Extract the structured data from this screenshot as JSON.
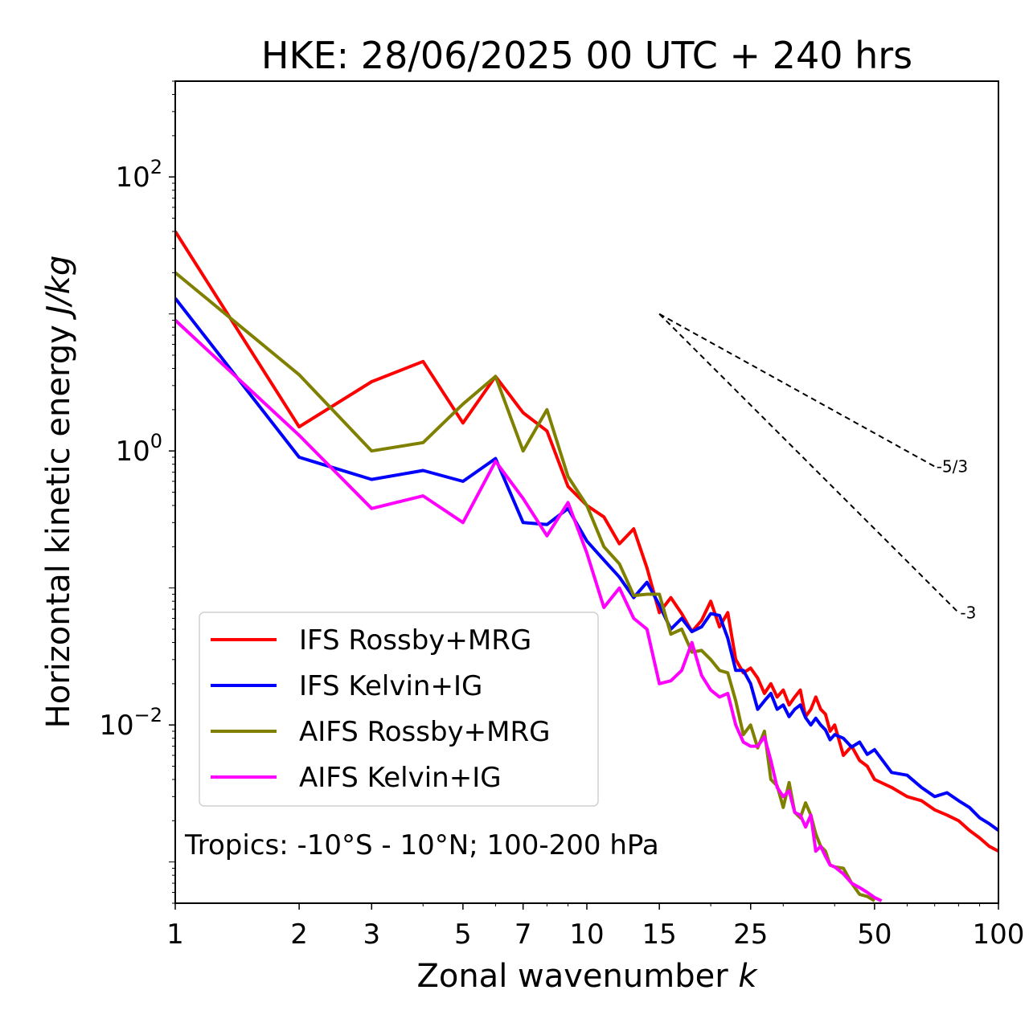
{
  "chart_data": {
    "type": "line",
    "title": "HKE: 28/06/2025 00 UTC + 240 hrs",
    "xlabel_text": "Zonal wavenumber ",
    "xlabel_var": "k",
    "ylabel_text": "Horizontal kinetic energy ",
    "ylabel_units": "J/kg",
    "annotation": "Tropics: -10°S - 10°N; 100-200 hPa",
    "x_scale": "log",
    "y_scale": "log",
    "xlim": [
      1,
      100
    ],
    "ylim": [
      0.0005,
      500
    ],
    "grid": false,
    "legend_position": "lower-left",
    "xticks": [
      {
        "value": 1,
        "label": "1"
      },
      {
        "value": 2,
        "label": "2"
      },
      {
        "value": 3,
        "label": "3"
      },
      {
        "value": 5,
        "label": "5"
      },
      {
        "value": 7,
        "label": "7"
      },
      {
        "value": 10,
        "label": "10"
      },
      {
        "value": 15,
        "label": "15"
      },
      {
        "value": 25,
        "label": "25"
      },
      {
        "value": 50,
        "label": "50"
      },
      {
        "value": 100,
        "label": "100"
      }
    ],
    "yticks": [
      {
        "value": 100,
        "base": "10",
        "exp": "2"
      },
      {
        "value": 1,
        "base": "10",
        "exp": "0"
      },
      {
        "value": 0.01,
        "base": "10",
        "exp": "−2"
      }
    ],
    "reference_slopes": [
      {
        "label": "-5/3",
        "x_start": 15,
        "y_start": 10,
        "x_end": 70,
        "y_end": 0.77
      },
      {
        "label": "-3",
        "x_start": 15,
        "y_start": 10,
        "x_end": 80,
        "y_end": 0.066
      }
    ],
    "series": [
      {
        "name": "IFS Rossby+MRG",
        "color": "#ff0000",
        "x": [
          1,
          2,
          3,
          4,
          5,
          6,
          7,
          8,
          9,
          10,
          11,
          12,
          13,
          14,
          15,
          16,
          17,
          18,
          19,
          20,
          21,
          22,
          23,
          24,
          25,
          26,
          27,
          28,
          29,
          30,
          31,
          32,
          33,
          34,
          35,
          36,
          37,
          38,
          39,
          40,
          42,
          44,
          46,
          48,
          50,
          55,
          60,
          65,
          70,
          75,
          80,
          85,
          90,
          95,
          100
        ],
        "y": [
          40,
          1.5,
          3.2,
          4.5,
          1.6,
          3.5,
          1.9,
          1.4,
          0.55,
          0.4,
          0.33,
          0.21,
          0.27,
          0.14,
          0.066,
          0.085,
          0.065,
          0.048,
          0.058,
          0.08,
          0.052,
          0.066,
          0.03,
          0.024,
          0.026,
          0.022,
          0.017,
          0.02,
          0.016,
          0.018,
          0.014,
          0.016,
          0.018,
          0.0115,
          0.013,
          0.016,
          0.013,
          0.012,
          0.009,
          0.01,
          0.006,
          0.007,
          0.0055,
          0.005,
          0.004,
          0.0035,
          0.003,
          0.0028,
          0.0024,
          0.0022,
          0.002,
          0.0017,
          0.0015,
          0.0013,
          0.0012
        ]
      },
      {
        "name": "IFS Kelvin+IG",
        "color": "#0000ff",
        "x": [
          1,
          2,
          3,
          4,
          5,
          6,
          7,
          8,
          9,
          10,
          11,
          12,
          13,
          14,
          15,
          16,
          17,
          18,
          19,
          20,
          21,
          22,
          23,
          24,
          25,
          26,
          27,
          28,
          29,
          30,
          31,
          32,
          33,
          34,
          35,
          36,
          37,
          38,
          39,
          40,
          42,
          44,
          46,
          48,
          50,
          55,
          60,
          65,
          70,
          75,
          80,
          85,
          90,
          95,
          100
        ],
        "y": [
          13,
          0.9,
          0.62,
          0.72,
          0.6,
          0.88,
          0.3,
          0.29,
          0.38,
          0.22,
          0.16,
          0.12,
          0.085,
          0.11,
          0.075,
          0.05,
          0.06,
          0.048,
          0.052,
          0.065,
          0.063,
          0.043,
          0.025,
          0.025,
          0.02,
          0.013,
          0.015,
          0.017,
          0.013,
          0.014,
          0.0115,
          0.013,
          0.014,
          0.0113,
          0.01,
          0.0112,
          0.01,
          0.0092,
          0.0078,
          0.0085,
          0.008,
          0.0069,
          0.0075,
          0.0061,
          0.0066,
          0.0045,
          0.0043,
          0.0035,
          0.003,
          0.0032,
          0.0028,
          0.0025,
          0.0021,
          0.0019,
          0.0017
        ]
      },
      {
        "name": "AIFS Rossby+MRG",
        "color": "#808000",
        "x": [
          1,
          2,
          3,
          4,
          5,
          6,
          7,
          8,
          9,
          10,
          11,
          12,
          13,
          14,
          15,
          16,
          17,
          18,
          19,
          20,
          21,
          22,
          23,
          24,
          25,
          26,
          27,
          28,
          29,
          30,
          31,
          32,
          33,
          34,
          35,
          36,
          37,
          38,
          39,
          40,
          42,
          44,
          46,
          48,
          50
        ],
        "y": [
          20,
          3.6,
          1,
          1.15,
          2.2,
          3.5,
          1,
          2,
          0.65,
          0.4,
          0.2,
          0.15,
          0.088,
          0.09,
          0.09,
          0.046,
          0.05,
          0.034,
          0.035,
          0.03,
          0.025,
          0.024,
          0.015,
          0.0085,
          0.01,
          0.0068,
          0.009,
          0.004,
          0.0036,
          0.0025,
          0.0038,
          0.0023,
          0.0021,
          0.0027,
          0.0022,
          0.0016,
          0.0013,
          0.0012,
          0.00095,
          0.00092,
          0.0009,
          0.0007,
          0.00058,
          0.00056,
          0.00052
        ]
      },
      {
        "name": "AIFS Kelvin+IG",
        "color": "#ff00ff",
        "x": [
          1,
          2,
          3,
          4,
          5,
          6,
          7,
          8,
          9,
          10,
          11,
          12,
          13,
          14,
          15,
          16,
          17,
          18,
          19,
          20,
          21,
          22,
          23,
          24,
          25,
          26,
          27,
          28,
          29,
          30,
          31,
          32,
          33,
          34,
          35,
          36,
          37,
          38,
          39,
          40,
          42,
          44,
          46,
          48,
          50,
          52
        ],
        "y": [
          9,
          1.3,
          0.38,
          0.47,
          0.3,
          0.84,
          0.45,
          0.24,
          0.42,
          0.18,
          0.072,
          0.1,
          0.06,
          0.05,
          0.02,
          0.021,
          0.025,
          0.04,
          0.023,
          0.018,
          0.016,
          0.017,
          0.01,
          0.0075,
          0.007,
          0.007,
          0.0082,
          0.0055,
          0.0035,
          0.003,
          0.0033,
          0.0023,
          0.0022,
          0.0018,
          0.0022,
          0.0012,
          0.0013,
          0.0011,
          0.00095,
          0.00092,
          0.00082,
          0.0007,
          0.00065,
          0.0006,
          0.00055,
          0.00052
        ]
      }
    ]
  }
}
